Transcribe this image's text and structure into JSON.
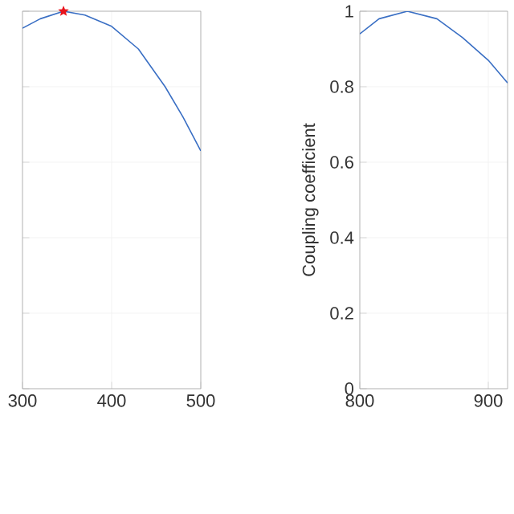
{
  "chart_data": [
    {
      "type": "line",
      "xlim": [
        300,
        500
      ],
      "ylim": [
        0,
        1
      ],
      "xticks": [
        300,
        400,
        500
      ],
      "yticks": [
        0,
        0.2,
        0.4,
        0.6,
        0.8,
        1
      ],
      "tick_labels": "x",
      "grid": true,
      "series": [
        {
          "color": "#3a6fc4",
          "x": [
            300,
            320,
            346,
            370,
            400,
            430,
            460,
            480,
            500
          ],
          "values": [
            0.955,
            0.98,
            1,
            0.99,
            0.96,
            0.9,
            0.8,
            0.72,
            0.63
          ]
        },
        {
          "type": "scatter",
          "marker": "star",
          "color": "#e8141c",
          "x": [
            346
          ],
          "values": [
            1
          ]
        }
      ]
    },
    {
      "type": "line",
      "xlim": [
        800,
        915
      ],
      "ylim": [
        0,
        1
      ],
      "xticks": [
        800,
        900
      ],
      "yticks": [
        0,
        0.2,
        0.4,
        0.6,
        0.8,
        1
      ],
      "ylabel": "Coupling coefficient",
      "grid": true,
      "series": [
        {
          "color": "#3a6fc4",
          "x": [
            800,
            815,
            837,
            860,
            880,
            900,
            915
          ],
          "values": [
            0.94,
            0.98,
            1,
            0.98,
            0.93,
            0.87,
            0.81
          ]
        }
      ]
    }
  ]
}
